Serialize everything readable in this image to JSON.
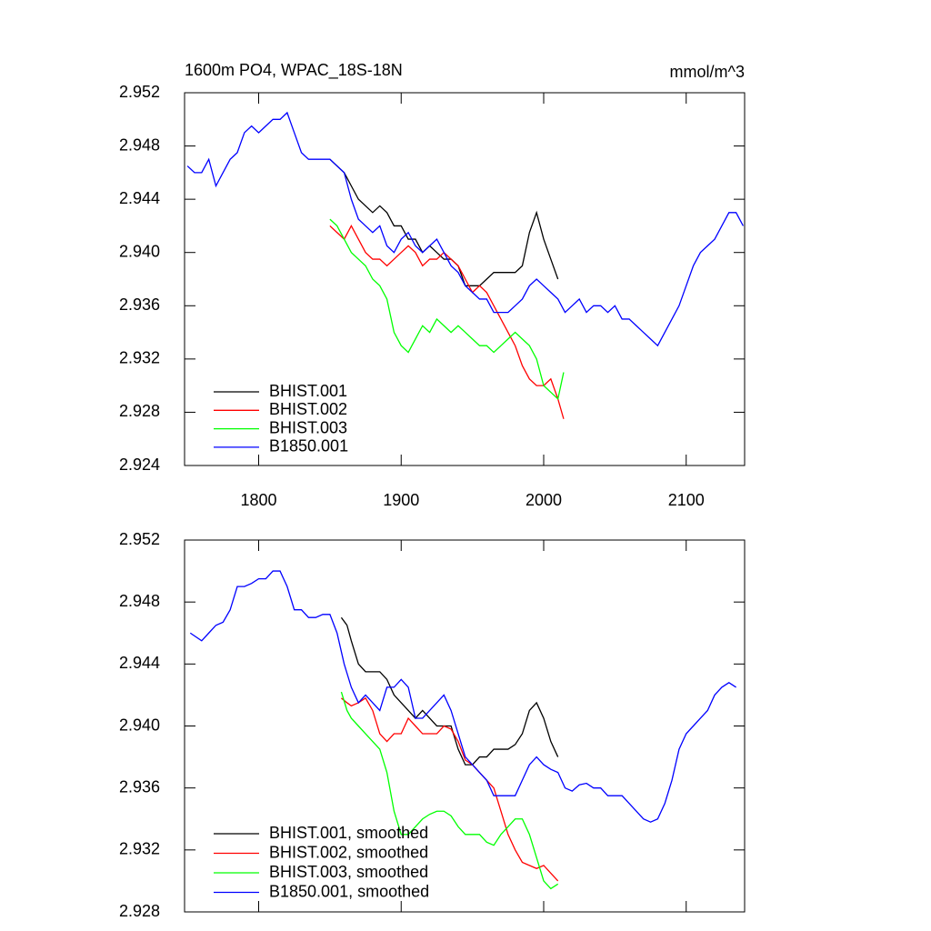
{
  "chart_data": [
    {
      "type": "line",
      "title": "1600m PO4, WPAC_18S-18N",
      "subtitle": "mmol/m^3",
      "xlim": [
        1748,
        2141
      ],
      "xticks": [
        1800,
        1900,
        2000,
        2100
      ],
      "ylim": [
        2.924,
        2.952
      ],
      "yticks": [
        2.924,
        2.928,
        2.932,
        2.936,
        {
          "value": 2.94,
          "label": "2.940"
        },
        2.944,
        2.948,
        2.952
      ],
      "legend": "lower left",
      "series": [
        {
          "name": "BHIST.001",
          "color": "#000000",
          "x": [
            1850,
            1855,
            1860,
            1865,
            1870,
            1875,
            1880,
            1885,
            1890,
            1895,
            1900,
            1905,
            1910,
            1915,
            1920,
            1925,
            1930,
            1935,
            1940,
            1945,
            1950,
            1955,
            1960,
            1965,
            1970,
            1975,
            1980,
            1985,
            1990,
            1995,
            2000,
            2005,
            2010
          ],
          "values": [
            2.947,
            2.9465,
            2.946,
            2.945,
            2.944,
            2.9435,
            2.943,
            2.9435,
            2.943,
            2.942,
            2.942,
            2.941,
            2.941,
            2.94,
            2.9405,
            2.94,
            2.9395,
            2.9395,
            2.939,
            2.9375,
            2.9375,
            2.9375,
            2.938,
            2.9385,
            2.9385,
            2.9385,
            2.9385,
            2.939,
            2.9415,
            2.943,
            2.941,
            2.9395,
            2.938
          ]
        },
        {
          "name": "BHIST.002",
          "color": "#ff0000",
          "x": [
            1850,
            1855,
            1860,
            1865,
            1870,
            1875,
            1880,
            1885,
            1890,
            1895,
            1900,
            1905,
            1910,
            1915,
            1920,
            1925,
            1930,
            1935,
            1940,
            1945,
            1950,
            1955,
            1960,
            1965,
            1970,
            1975,
            1980,
            1985,
            1990,
            1995,
            2000,
            2005,
            2010,
            2014
          ],
          "values": [
            2.942,
            2.9415,
            2.941,
            2.942,
            2.941,
            2.94,
            2.9395,
            2.9395,
            2.939,
            2.9395,
            2.94,
            2.9405,
            2.94,
            2.939,
            2.9395,
            2.9395,
            2.94,
            2.9395,
            2.939,
            2.938,
            2.937,
            2.9375,
            2.937,
            2.936,
            2.935,
            2.934,
            2.933,
            2.9315,
            2.9305,
            2.93,
            2.93,
            2.9305,
            2.929,
            2.9275
          ]
        },
        {
          "name": "BHIST.003",
          "color": "#00ff00",
          "x": [
            1850,
            1855,
            1860,
            1865,
            1870,
            1875,
            1880,
            1885,
            1890,
            1895,
            1900,
            1905,
            1910,
            1915,
            1920,
            1925,
            1930,
            1935,
            1940,
            1945,
            1950,
            1955,
            1960,
            1965,
            1970,
            1975,
            1980,
            1985,
            1990,
            1995,
            2000,
            2005,
            2010,
            2014
          ],
          "values": [
            2.9425,
            2.942,
            2.941,
            2.94,
            2.9395,
            2.939,
            2.938,
            2.9375,
            2.9365,
            2.934,
            2.933,
            2.9325,
            2.9335,
            2.9345,
            2.934,
            2.935,
            2.9345,
            2.934,
            2.9345,
            2.934,
            2.9335,
            2.933,
            2.933,
            2.9325,
            2.933,
            2.9335,
            2.934,
            2.9335,
            2.933,
            2.932,
            2.93,
            2.9295,
            2.929,
            2.931
          ]
        },
        {
          "name": "B1850.001",
          "color": "#0000ff",
          "x": [
            1750,
            1755,
            1760,
            1765,
            1770,
            1775,
            1780,
            1785,
            1790,
            1795,
            1800,
            1805,
            1810,
            1815,
            1820,
            1825,
            1830,
            1835,
            1840,
            1845,
            1850,
            1855,
            1860,
            1865,
            1870,
            1875,
            1880,
            1885,
            1890,
            1895,
            1900,
            1905,
            1910,
            1915,
            1920,
            1925,
            1930,
            1935,
            1940,
            1945,
            1950,
            1955,
            1960,
            1965,
            1970,
            1975,
            1980,
            1985,
            1990,
            1995,
            2000,
            2005,
            2010,
            2015,
            2020,
            2025,
            2030,
            2035,
            2040,
            2045,
            2050,
            2055,
            2060,
            2065,
            2070,
            2075,
            2080,
            2085,
            2090,
            2095,
            2100,
            2105,
            2110,
            2115,
            2120,
            2125,
            2130,
            2135,
            2140
          ],
          "values": [
            2.9465,
            2.946,
            2.946,
            2.947,
            2.945,
            2.946,
            2.947,
            2.9475,
            2.949,
            2.9495,
            2.949,
            2.9495,
            2.95,
            2.95,
            2.9505,
            2.949,
            2.9475,
            2.947,
            2.947,
            2.947,
            2.947,
            2.9465,
            2.946,
            2.944,
            2.9425,
            2.942,
            2.9415,
            2.942,
            2.9405,
            2.94,
            2.941,
            2.9415,
            2.9405,
            2.94,
            2.9405,
            2.941,
            2.94,
            2.939,
            2.9385,
            2.9375,
            2.937,
            2.9365,
            2.9365,
            2.9355,
            2.9355,
            2.9355,
            2.936,
            2.9365,
            2.9375,
            2.938,
            2.9375,
            2.937,
            2.9365,
            2.9355,
            2.936,
            2.9365,
            2.9355,
            2.936,
            2.936,
            2.9355,
            2.936,
            2.935,
            2.935,
            2.9345,
            2.934,
            2.9335,
            2.933,
            2.934,
            2.935,
            2.936,
            2.9375,
            2.939,
            2.94,
            2.9405,
            2.941,
            2.942,
            2.943,
            2.943,
            2.942
          ]
        }
      ]
    },
    {
      "type": "line",
      "xlim": [
        1748,
        2141
      ],
      "ylim": [
        2.928,
        2.952
      ],
      "yticks": [
        2.928,
        2.932,
        2.936,
        {
          "value": 2.94,
          "label": "2.940"
        },
        2.944,
        2.948,
        2.952
      ],
      "legend": "lower left",
      "series": [
        {
          "name": "BHIST.001, smoothed",
          "color": "#000000",
          "x": [
            1858,
            1862,
            1865,
            1870,
            1875,
            1880,
            1885,
            1890,
            1895,
            1900,
            1905,
            1910,
            1915,
            1920,
            1925,
            1930,
            1935,
            1940,
            1945,
            1950,
            1955,
            1960,
            1965,
            1970,
            1975,
            1980,
            1985,
            1990,
            1995,
            2000,
            2005,
            2010
          ],
          "values": [
            2.947,
            2.9465,
            2.9455,
            2.944,
            2.9435,
            2.9435,
            2.9435,
            2.943,
            2.942,
            2.9415,
            2.941,
            2.9405,
            2.941,
            2.9405,
            2.94,
            2.94,
            2.94,
            2.9385,
            2.9375,
            2.9375,
            2.938,
            2.938,
            2.9385,
            2.9385,
            2.9385,
            2.9388,
            2.9395,
            2.941,
            2.9415,
            2.9405,
            2.939,
            2.938
          ]
        },
        {
          "name": "BHIST.002, smoothed",
          "color": "#ff0000",
          "x": [
            1858,
            1862,
            1865,
            1870,
            1875,
            1880,
            1885,
            1890,
            1895,
            1900,
            1905,
            1910,
            1915,
            1920,
            1925,
            1930,
            1935,
            1940,
            1945,
            1950,
            1955,
            1960,
            1965,
            1970,
            1975,
            1980,
            1985,
            1990,
            1995,
            2000,
            2005,
            2010
          ],
          "values": [
            2.9418,
            2.9415,
            2.9413,
            2.9415,
            2.9418,
            2.941,
            2.9395,
            2.939,
            2.9395,
            2.9395,
            2.9405,
            2.94,
            2.9395,
            2.9395,
            2.9395,
            2.94,
            2.9398,
            2.939,
            2.9378,
            2.9375,
            2.937,
            2.9365,
            2.936,
            2.9345,
            2.933,
            2.932,
            2.9312,
            2.931,
            2.9308,
            2.931,
            2.9305,
            2.93
          ]
        },
        {
          "name": "BHIST.003, smoothed",
          "color": "#00ff00",
          "x": [
            1858,
            1862,
            1865,
            1870,
            1875,
            1880,
            1885,
            1890,
            1895,
            1900,
            1905,
            1910,
            1915,
            1920,
            1925,
            1930,
            1935,
            1940,
            1945,
            1950,
            1955,
            1960,
            1965,
            1970,
            1975,
            1980,
            1985,
            1990,
            1995,
            2000,
            2005,
            2010
          ],
          "values": [
            2.9422,
            2.941,
            2.9405,
            2.94,
            2.9395,
            2.939,
            2.9385,
            2.937,
            2.9345,
            2.933,
            2.933,
            2.9335,
            2.934,
            2.9343,
            2.9345,
            2.9345,
            2.9342,
            2.9335,
            2.933,
            2.933,
            2.933,
            2.9325,
            2.9323,
            2.933,
            2.9335,
            2.934,
            2.934,
            2.933,
            2.9315,
            2.93,
            2.9295,
            2.9298
          ]
        },
        {
          "name": "B1850.001, smoothed",
          "color": "#0000ff",
          "x": [
            1752,
            1760,
            1765,
            1770,
            1775,
            1780,
            1785,
            1790,
            1795,
            1800,
            1805,
            1810,
            1815,
            1820,
            1825,
            1830,
            1835,
            1840,
            1845,
            1850,
            1855,
            1860,
            1865,
            1870,
            1875,
            1880,
            1885,
            1890,
            1895,
            1900,
            1905,
            1910,
            1915,
            1920,
            1925,
            1930,
            1935,
            1940,
            1945,
            1950,
            1955,
            1960,
            1965,
            1970,
            1975,
            1980,
            1985,
            1990,
            1995,
            2000,
            2005,
            2010,
            2015,
            2020,
            2025,
            2030,
            2035,
            2040,
            2045,
            2050,
            2055,
            2060,
            2065,
            2070,
            2075,
            2080,
            2085,
            2090,
            2095,
            2100,
            2105,
            2110,
            2115,
            2120,
            2125,
            2130,
            2135
          ],
          "values": [
            2.946,
            2.9455,
            2.946,
            2.9465,
            2.9467,
            2.9475,
            2.949,
            2.949,
            2.9492,
            2.9495,
            2.9495,
            2.95,
            2.95,
            2.949,
            2.9475,
            2.9475,
            2.947,
            2.947,
            2.9472,
            2.9472,
            2.946,
            2.944,
            2.9425,
            2.9415,
            2.942,
            2.9415,
            2.941,
            2.9425,
            2.9425,
            2.943,
            2.9425,
            2.9405,
            2.9405,
            2.941,
            2.9415,
            2.942,
            2.941,
            2.9395,
            2.938,
            2.9375,
            2.937,
            2.9365,
            2.9355,
            2.9355,
            2.9355,
            2.9355,
            2.9365,
            2.9375,
            2.938,
            2.9375,
            2.9372,
            2.937,
            2.936,
            2.9358,
            2.9362,
            2.9363,
            2.936,
            2.936,
            2.9355,
            2.9355,
            2.9355,
            2.935,
            2.9345,
            2.934,
            2.9338,
            2.934,
            2.935,
            2.9365,
            2.9385,
            2.9395,
            2.94,
            2.9405,
            2.941,
            2.942,
            2.9425,
            2.9428,
            2.9425
          ]
        }
      ]
    }
  ]
}
